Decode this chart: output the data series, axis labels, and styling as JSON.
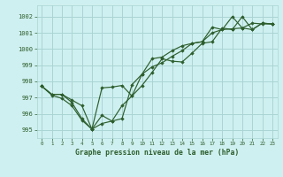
{
  "title": "Graphe pression niveau de la mer (hPa)",
  "background_color": "#cff0f0",
  "grid_color": "#aad4d4",
  "line_color": "#2d5e2d",
  "xlim": [
    -0.5,
    23.5
  ],
  "ylim": [
    994.5,
    1002.7
  ],
  "yticks": [
    995,
    996,
    997,
    998,
    999,
    1000,
    1001,
    1002
  ],
  "xticks": [
    0,
    1,
    2,
    3,
    4,
    5,
    6,
    7,
    8,
    9,
    10,
    11,
    12,
    13,
    14,
    15,
    16,
    17,
    18,
    19,
    20,
    21,
    22,
    23
  ],
  "series1": [
    [
      0,
      997.7
    ],
    [
      1,
      997.2
    ],
    [
      2,
      997.2
    ],
    [
      3,
      996.7
    ],
    [
      4,
      995.7
    ],
    [
      5,
      995.05
    ],
    [
      6,
      997.6
    ],
    [
      7,
      997.65
    ],
    [
      8,
      997.75
    ],
    [
      9,
      997.1
    ],
    [
      10,
      997.75
    ],
    [
      11,
      998.55
    ],
    [
      12,
      999.4
    ],
    [
      13,
      999.25
    ],
    [
      14,
      999.2
    ],
    [
      15,
      999.75
    ],
    [
      16,
      1000.35
    ],
    [
      17,
      1000.45
    ],
    [
      18,
      1001.3
    ],
    [
      19,
      1001.2
    ],
    [
      20,
      1002.0
    ],
    [
      21,
      1001.2
    ],
    [
      22,
      1001.6
    ],
    [
      23,
      1001.55
    ]
  ],
  "series2": [
    [
      0,
      997.7
    ],
    [
      1,
      997.15
    ],
    [
      2,
      996.95
    ],
    [
      3,
      996.5
    ],
    [
      4,
      995.6
    ],
    [
      5,
      995.05
    ],
    [
      6,
      995.4
    ],
    [
      7,
      995.55
    ],
    [
      8,
      995.7
    ],
    [
      9,
      997.8
    ],
    [
      10,
      998.45
    ],
    [
      11,
      998.9
    ],
    [
      12,
      999.15
    ],
    [
      13,
      999.55
    ],
    [
      14,
      999.9
    ],
    [
      15,
      1000.35
    ],
    [
      16,
      1000.45
    ],
    [
      17,
      1001.0
    ],
    [
      18,
      1001.2
    ],
    [
      19,
      1001.25
    ],
    [
      20,
      1001.3
    ],
    [
      21,
      1001.6
    ],
    [
      22,
      1001.55
    ],
    [
      23,
      1001.55
    ]
  ],
  "series3": [
    [
      0,
      997.7
    ],
    [
      1,
      997.2
    ],
    [
      2,
      997.2
    ],
    [
      3,
      996.85
    ],
    [
      4,
      996.5
    ],
    [
      5,
      995.05
    ],
    [
      6,
      995.9
    ],
    [
      7,
      995.55
    ],
    [
      8,
      996.5
    ],
    [
      9,
      997.1
    ],
    [
      10,
      998.45
    ],
    [
      11,
      999.4
    ],
    [
      12,
      999.5
    ],
    [
      13,
      999.9
    ],
    [
      14,
      1000.2
    ],
    [
      15,
      1000.35
    ],
    [
      16,
      1000.45
    ],
    [
      17,
      1001.35
    ],
    [
      18,
      1001.2
    ],
    [
      19,
      1002.0
    ],
    [
      20,
      1001.3
    ],
    [
      21,
      1001.2
    ],
    [
      22,
      1001.6
    ],
    [
      23,
      1001.55
    ]
  ]
}
